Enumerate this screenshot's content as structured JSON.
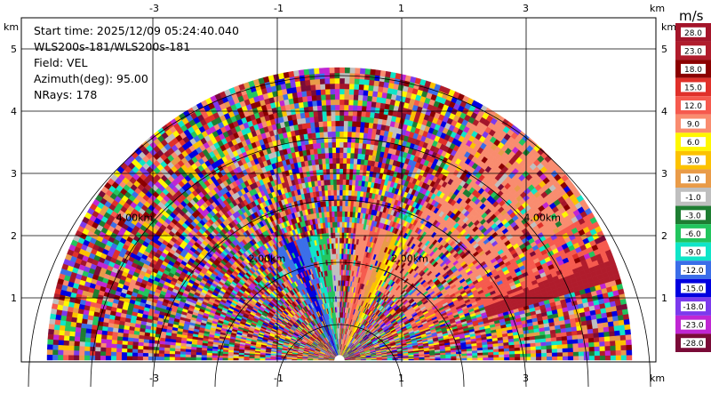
{
  "info": {
    "start_time": "Start time: 2025/12/09 05:24:40.040",
    "site": "WLS200s-181/WLS200s-181",
    "field": "Field: VEL",
    "azimuth": "Azimuth(deg): 95.00",
    "nrays": "NRays: 178"
  },
  "axes": {
    "x_ticks": [
      "-3",
      "-1",
      "1",
      "3"
    ],
    "y_ticks": [
      "1",
      "2",
      "3",
      "4",
      "5"
    ],
    "unit": "km"
  },
  "rings": [
    "2.00km",
    "4.00km"
  ],
  "colorbar": {
    "unit": "m/s",
    "levels": [
      {
        "label": "28.0",
        "color": "#a4152a"
      },
      {
        "label": "23.0",
        "color": "#b01c2c"
      },
      {
        "label": "18.0",
        "color": "#8b0000"
      },
      {
        "label": "15.0",
        "color": "#e0302a"
      },
      {
        "label": "12.0",
        "color": "#f65a4e"
      },
      {
        "label": "9.0",
        "color": "#f98c6f"
      },
      {
        "label": "6.0",
        "color": "#fff700"
      },
      {
        "label": "3.0",
        "color": "#fcc200"
      },
      {
        "label": "1.0",
        "color": "#e99b48"
      },
      {
        "label": "-1.0",
        "color": "#bfbfbf"
      },
      {
        "label": "-3.0",
        "color": "#1e7d32"
      },
      {
        "label": "-6.0",
        "color": "#22c55e"
      },
      {
        "label": "-9.0",
        "color": "#10e5c8"
      },
      {
        "label": "-12.0",
        "color": "#3b6ee8"
      },
      {
        "label": "-15.0",
        "color": "#0000e0"
      },
      {
        "label": "-18.0",
        "color": "#7c3aed"
      },
      {
        "label": "-23.0",
        "color": "#c026d3"
      },
      {
        "label": "-28.0",
        "color": "#7a0b38"
      }
    ]
  }
}
